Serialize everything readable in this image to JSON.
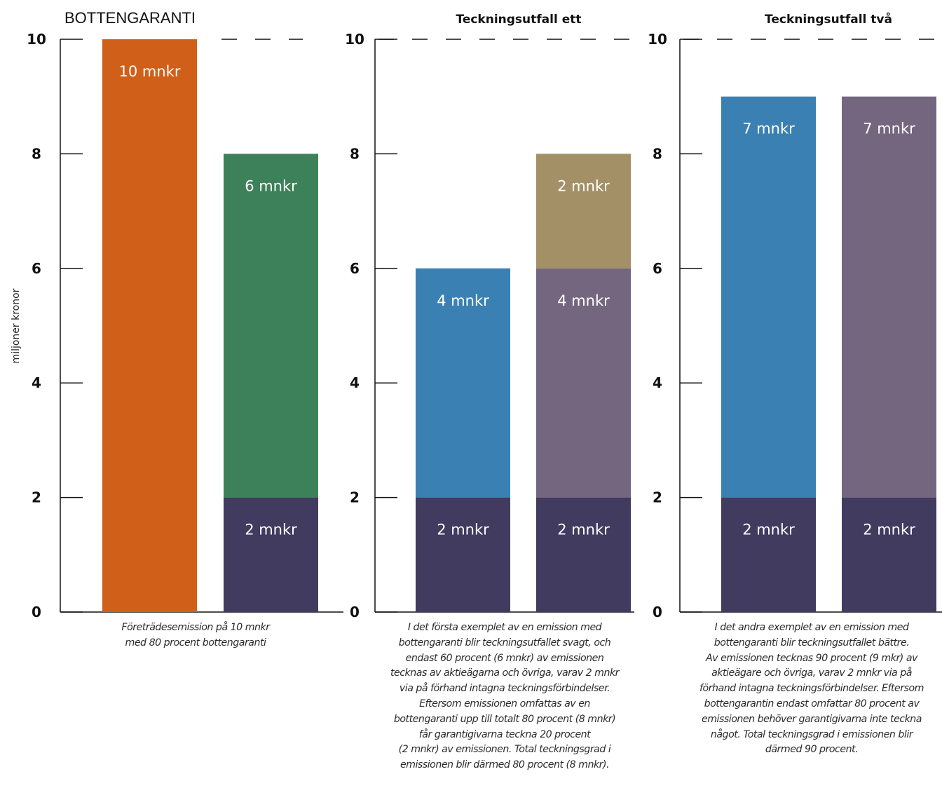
{
  "ylabel": "miljoner kronor",
  "colors": {
    "orange": "#d05f19",
    "green": "#3c8159",
    "navy": "#403b5f",
    "blue": "#3b80b3",
    "purple": "#74667e",
    "khaki": "#a49066",
    "axis": "#111111",
    "bar_label": "#ffffff"
  },
  "chart_data": [
    {
      "type": "bar",
      "stacked": true,
      "title": "BOTTENGARANTI",
      "ylim": [
        0,
        10
      ],
      "yticks": [
        "0",
        "2",
        "4",
        "6",
        "8",
        "10"
      ],
      "ylabel": "miljoner kronor",
      "reference_line": 10,
      "bars": [
        {
          "segments": [
            {
              "value": 10,
              "label": "10 mnkr",
              "color": "#d05f19"
            }
          ]
        },
        {
          "segments": [
            {
              "value": 2,
              "label": "2 mnkr",
              "color": "#403b5f"
            },
            {
              "value": 6,
              "label": "6 mnkr",
              "color": "#3c8159"
            }
          ]
        }
      ],
      "caption": [
        "Företrädesemission på 10 mnkr",
        "med 80 procent bottengaranti"
      ]
    },
    {
      "type": "bar",
      "stacked": true,
      "title": "Teckningsutfall ett",
      "ylim": [
        0,
        10
      ],
      "yticks": [
        "0",
        "2",
        "4",
        "6",
        "8",
        "10"
      ],
      "reference_line": 10,
      "bars": [
        {
          "segments": [
            {
              "value": 2,
              "label": "2 mnkr",
              "color": "#403b5f"
            },
            {
              "value": 4,
              "label": "4 mnkr",
              "color": "#3b80b3"
            }
          ]
        },
        {
          "segments": [
            {
              "value": 2,
              "label": "2 mnkr",
              "color": "#403b5f"
            },
            {
              "value": 4,
              "label": "4 mnkr",
              "color": "#74667e"
            },
            {
              "value": 2,
              "label": "2 mnkr",
              "color": "#a49066"
            }
          ]
        }
      ],
      "caption": [
        "I det första exemplet av en emission med",
        "bottengaranti blir teckningsutfallet svagt, och",
        "endast 60 procent (6 mnkr) av emissionen",
        "tecknas av aktieägarna och övriga, varav 2 mnkr",
        "via på förhand intagna teckningsförbindelser.",
        "Eftersom emissionen omfattas av en",
        "bottengaranti upp till totalt 80 procent (8 mnkr)",
        "får garantigivarna teckna 20 procent",
        "(2 mnkr) av emissionen. Total teckningsgrad i",
        "emissionen blir därmed 80 procent (8 mnkr)."
      ]
    },
    {
      "type": "bar",
      "stacked": true,
      "title": "Teckningsutfall två",
      "ylim": [
        0,
        10
      ],
      "yticks": [
        "0",
        "2",
        "4",
        "6",
        "8",
        "10"
      ],
      "reference_line": 10,
      "bars": [
        {
          "segments": [
            {
              "value": 2,
              "label": "2 mnkr",
              "color": "#403b5f"
            },
            {
              "value": 7,
              "label": "7 mnkr",
              "color": "#3b80b3"
            }
          ]
        },
        {
          "segments": [
            {
              "value": 2,
              "label": "2 mnkr",
              "color": "#403b5f"
            },
            {
              "value": 7,
              "label": "7 mnkr",
              "color": "#74667e"
            }
          ]
        }
      ],
      "caption": [
        "I det andra exemplet av en emission med",
        "bottengaranti blir teckningsutfallet bättre.",
        "Av emissionen tecknas 90 procent (9 mkr) av",
        "aktieägare och övriga, varav 2 mnkr via på",
        "förhand intagna teckningsförbindelser. Eftersom",
        "bottengarantin endast omfattar 80 procent av",
        "emissionen behöver garantigivarna inte teckna",
        "något. Total teckningsgrad i emissionen blir",
        "därmed 90 procent."
      ]
    }
  ]
}
